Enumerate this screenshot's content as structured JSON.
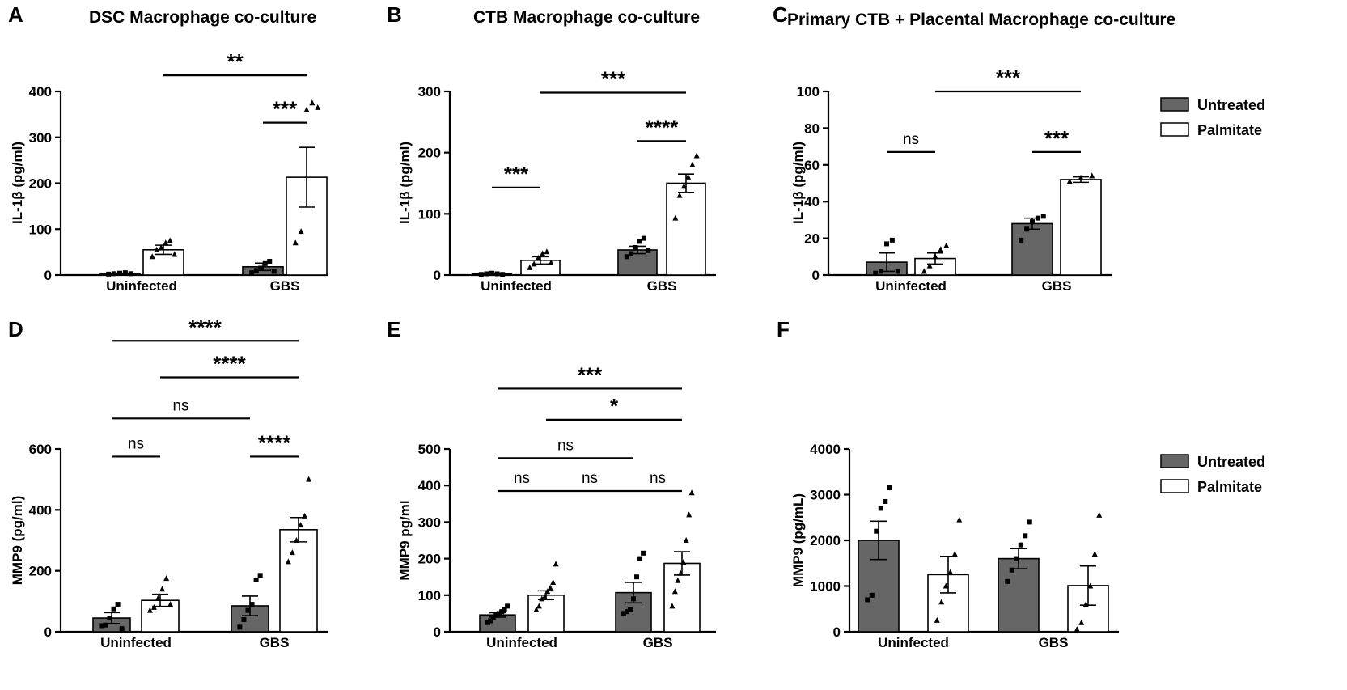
{
  "colors": {
    "untreated": "#666666",
    "palmitate": "#ffffff",
    "stroke": "#000000"
  },
  "legend": {
    "untreated_label": "Untreated",
    "palmitate_label": "Palmitate"
  },
  "chart_data": [
    {
      "panel": "A",
      "title": "DSC Macrophage co-culture",
      "type": "bar",
      "categories": [
        "Uninfected",
        "GBS"
      ],
      "ylabel": "IL-1β (pg/ml)",
      "ylim": [
        0,
        400
      ],
      "yticks": [
        0,
        100,
        200,
        300,
        400
      ],
      "tick_labels": [
        "0",
        "100",
        "200",
        "300",
        "400"
      ],
      "series": [
        {
          "name": "Untreated",
          "values": [
            3,
            18
          ],
          "sem": [
            1,
            8
          ],
          "points": [
            [
              2,
              3,
              4,
              5,
              3
            ],
            [
              5,
              10,
              15,
              25,
              30,
              8
            ]
          ]
        },
        {
          "name": "Palmitate",
          "values": [
            55,
            213
          ],
          "sem": [
            10,
            65
          ],
          "points": [
            [
              40,
              55,
              60,
              70,
              75,
              45
            ],
            [
              70,
              95,
              360,
              375,
              365
            ]
          ]
        }
      ],
      "significance": [
        {
          "from": [
            0,
            1
          ],
          "to": [
            1,
            1
          ],
          "label": "**",
          "y": 435
        },
        {
          "from": [
            1,
            0
          ],
          "to": [
            1,
            1
          ],
          "label": "***",
          "y": 332
        }
      ]
    },
    {
      "panel": "B",
      "title": "CTB Macrophage co-culture",
      "type": "bar",
      "categories": [
        "Uninfected",
        "GBS"
      ],
      "ylabel": "IL-1β (pg/ml)",
      "ylim": [
        0,
        300
      ],
      "yticks": [
        0,
        100,
        200,
        300
      ],
      "tick_labels": [
        "0",
        "100",
        "200",
        "300"
      ],
      "series": [
        {
          "name": "Untreated",
          "values": [
            2,
            41
          ],
          "sem": [
            1,
            6
          ],
          "points": [
            [
              1,
              2,
              3,
              2,
              1
            ],
            [
              30,
              35,
              45,
              55,
              60,
              40
            ]
          ]
        },
        {
          "name": "Palmitate",
          "values": [
            24,
            150
          ],
          "sem": [
            6,
            15
          ],
          "points": [
            [
              12,
              18,
              28,
              35,
              38,
              20
            ],
            [
              93,
              130,
              145,
              160,
              180,
              195
            ]
          ]
        }
      ],
      "significance": [
        {
          "from": [
            0,
            0
          ],
          "to": [
            0,
            1
          ],
          "label": "***",
          "y": 143
        },
        {
          "from": [
            0,
            1
          ],
          "to": [
            1,
            1
          ],
          "label": "***",
          "y": 298
        },
        {
          "from": [
            1,
            0
          ],
          "to": [
            1,
            1
          ],
          "label": "****",
          "y": 219
        }
      ]
    },
    {
      "panel": "C",
      "title": "Primary CTB + Placental Macrophage co-culture",
      "type": "bar",
      "categories": [
        "Uninfected",
        "GBS"
      ],
      "ylabel": "IL-1β (pg/ml)",
      "ylim": [
        0,
        100
      ],
      "yticks": [
        0,
        20,
        40,
        60,
        80,
        100
      ],
      "tick_labels": [
        "0",
        "20",
        "40",
        "60",
        "80",
        "100"
      ],
      "series": [
        {
          "name": "Untreated",
          "values": [
            7,
            28
          ],
          "sem": [
            5,
            3
          ],
          "points": [
            [
              1,
              2,
              17,
              19,
              2
            ],
            [
              19,
              25,
              29,
              31,
              32
            ]
          ]
        },
        {
          "name": "Palmitate",
          "values": [
            9,
            52
          ],
          "sem": [
            3,
            1.5
          ],
          "points": [
            [
              2,
              5,
              10,
              14,
              16
            ],
            [
              51,
              53,
              54
            ]
          ]
        }
      ],
      "significance": [
        {
          "from": [
            0,
            0
          ],
          "to": [
            0,
            1
          ],
          "label": "ns",
          "y": 67
        },
        {
          "from": [
            0,
            1
          ],
          "to": [
            1,
            1
          ],
          "label": "***",
          "y": 100
        },
        {
          "from": [
            1,
            0
          ],
          "to": [
            1,
            1
          ],
          "label": "***",
          "y": 67
        }
      ]
    },
    {
      "panel": "D",
      "title": "",
      "type": "bar",
      "categories": [
        "Uninfected",
        "GBS"
      ],
      "ylabel": "MMP9 (pg/ml)",
      "ylim": [
        0,
        600
      ],
      "yticks": [
        0,
        200,
        400,
        600
      ],
      "tick_labels": [
        "0",
        "200",
        "400",
        "600"
      ],
      "series": [
        {
          "name": "Untreated",
          "values": [
            45,
            85
          ],
          "sem": [
            18,
            32
          ],
          "points": [
            [
              20,
              22,
              45,
              75,
              90,
              10
            ],
            [
              15,
              40,
              70,
              90,
              170,
              185
            ]
          ]
        },
        {
          "name": "Palmitate",
          "values": [
            103,
            335
          ],
          "sem": [
            20,
            40
          ],
          "points": [
            [
              70,
              80,
              110,
              140,
              175,
              90
            ],
            [
              230,
              260,
              300,
              350,
              380,
              500
            ]
          ]
        }
      ],
      "significance": [
        {
          "from": [
            0,
            0
          ],
          "to": [
            1,
            1
          ],
          "label": "****",
          "y": 955
        },
        {
          "from": [
            0,
            1
          ],
          "to": [
            1,
            1
          ],
          "label": "****",
          "y": 835
        },
        {
          "from": [
            0,
            0
          ],
          "to": [
            1,
            0
          ],
          "label": "ns",
          "y": 700
        },
        {
          "from": [
            0,
            0
          ],
          "to": [
            0,
            1
          ],
          "label": "ns",
          "y": 575
        },
        {
          "from": [
            1,
            0
          ],
          "to": [
            1,
            1
          ],
          "label": "****",
          "y": 575
        }
      ]
    },
    {
      "panel": "E",
      "title": "",
      "type": "bar",
      "categories": [
        "Uninfected",
        "GBS"
      ],
      "ylabel": "MMP9 pg/ml",
      "ylim": [
        0,
        500
      ],
      "yticks": [
        0,
        100,
        200,
        300,
        400,
        500
      ],
      "tick_labels": [
        "0",
        "100",
        "200",
        "300",
        "400",
        "500"
      ],
      "series": [
        {
          "name": "Untreated",
          "values": [
            46,
            107
          ],
          "sem": [
            6,
            28
          ],
          "points": [
            [
              25,
              30,
              40,
              45,
              50,
              55,
              60,
              70
            ],
            [
              50,
              55,
              60,
              90,
              150,
              200,
              215
            ]
          ]
        },
        {
          "name": "Palmitate",
          "values": [
            100,
            187
          ],
          "sem": [
            12,
            32
          ],
          "points": [
            [
              60,
              70,
              90,
              95,
              110,
              120,
              135,
              185
            ],
            [
              70,
              110,
              140,
              160,
              190,
              250,
              320,
              380
            ]
          ]
        }
      ],
      "significance": [
        {
          "from": [
            0,
            0
          ],
          "to": [
            1,
            1
          ],
          "label": "***",
          "y": 665
        },
        {
          "from": [
            0,
            1
          ],
          "to": [
            1,
            1
          ],
          "label": "*",
          "y": 580
        },
        {
          "from": [
            0,
            0
          ],
          "to": [
            1,
            0
          ],
          "label": "ns",
          "y": 475
        },
        {
          "from": [
            0,
            0
          ],
          "to": [
            0,
            1
          ],
          "label": "ns",
          "y": 385
        },
        {
          "from": [
            0,
            1
          ],
          "to": [
            1,
            0
          ],
          "label": "ns",
          "y": 385
        },
        {
          "from": [
            1,
            0
          ],
          "to": [
            1,
            1
          ],
          "label": "ns",
          "y": 385
        }
      ]
    },
    {
      "panel": "F",
      "title": "",
      "type": "bar",
      "categories": [
        "Uninfected",
        "GBS"
      ],
      "ylabel": "MMP9 (pg/mL)",
      "ylim": [
        0,
        4000
      ],
      "yticks": [
        0,
        1000,
        2000,
        3000,
        4000
      ],
      "tick_labels": [
        "0",
        "1000",
        "2000",
        "3000",
        "4000"
      ],
      "series": [
        {
          "name": "Untreated",
          "values": [
            2000,
            1600
          ],
          "sem": [
            420,
            220
          ],
          "points": [
            [
              700,
              800,
              2200,
              2700,
              2850,
              3150
            ],
            [
              1100,
              1350,
              1600,
              1900,
              2100,
              2400
            ]
          ]
        },
        {
          "name": "Palmitate",
          "values": [
            1250,
            1010
          ],
          "sem": [
            400,
            430
          ],
          "points": [
            [
              250,
              650,
              1000,
              1300,
              1700,
              2450
            ],
            [
              50,
              200,
              600,
              1000,
              1700,
              2550
            ]
          ]
        }
      ],
      "significance": []
    }
  ]
}
